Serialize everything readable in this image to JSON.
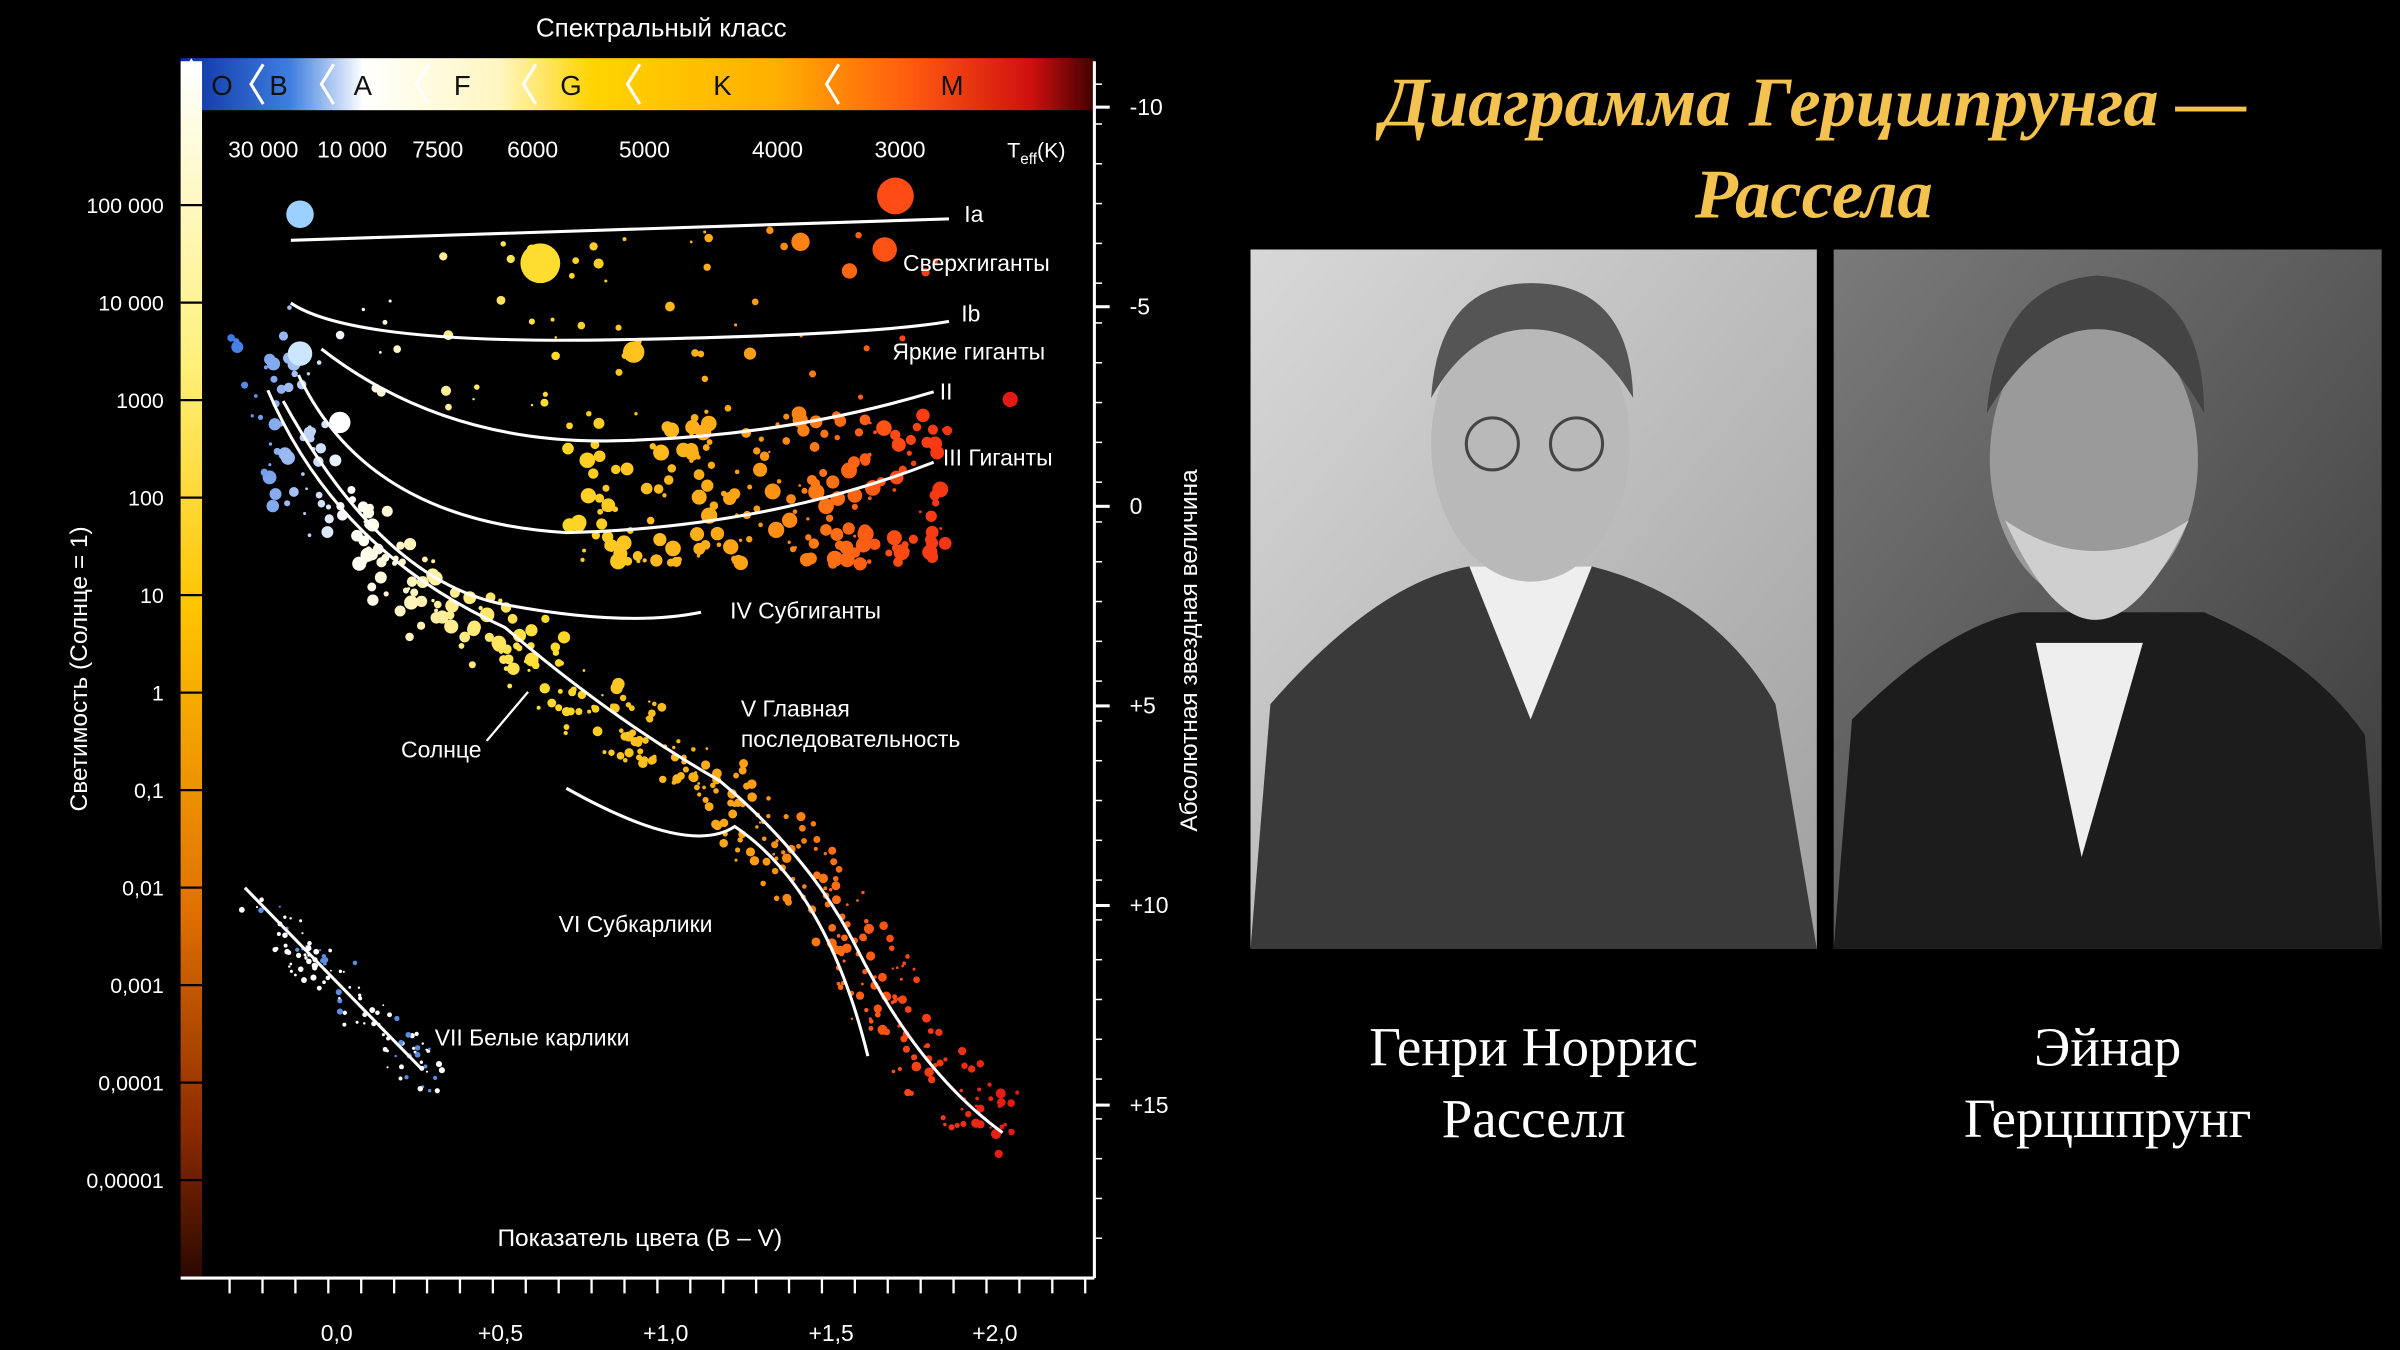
{
  "title": {
    "lines": [
      "Диаграмма Герцшпрунга —",
      "Рассела"
    ]
  },
  "diagram": {
    "top_axis_title": "Спектральный класс",
    "spectral_classes": [
      "O",
      "B",
      "A",
      "F",
      "G",
      "K",
      "M"
    ],
    "temperatures": [
      "30 000",
      "10 000",
      "7500",
      "6000",
      "5000",
      "4000",
      "3000"
    ],
    "temperature_unit": {
      "base": "T",
      "sub": "eff",
      "suffix": "(K)"
    },
    "luminosity_title": "Светимость (Солнце = 1)",
    "luminosity_ticks": [
      "100 000",
      "10 000",
      "1000",
      "100",
      "10",
      "1",
      "0,1",
      "0,01",
      "0,001",
      "0,0001",
      "0,00001"
    ],
    "magnitude_title": "Абсолютная звездная величина",
    "magnitude_ticks": [
      "-10",
      "-5",
      "0",
      "+5",
      "+10",
      "+15"
    ],
    "color_title": "Показатель цвета (B – V)",
    "color_ticks": [
      "0,0",
      "+0,5",
      "+1,0",
      "+1,5",
      "+2,0"
    ],
    "regions": [
      "Ia",
      "Сверхгиганты",
      "Ib",
      "Яркие гиганты",
      "II",
      "III Гиганты",
      "IV Субгиганты",
      "V Главная",
      "последовательность",
      "Солнце",
      "VI Субкарлики",
      "VII Белые карлики"
    ]
  },
  "portraits": [
    {
      "name_lines": [
        "Генри Норрис",
        "Расселл"
      ]
    },
    {
      "name_lines": [
        "Эйнар",
        "Герцшпрунг"
      ]
    }
  ]
}
